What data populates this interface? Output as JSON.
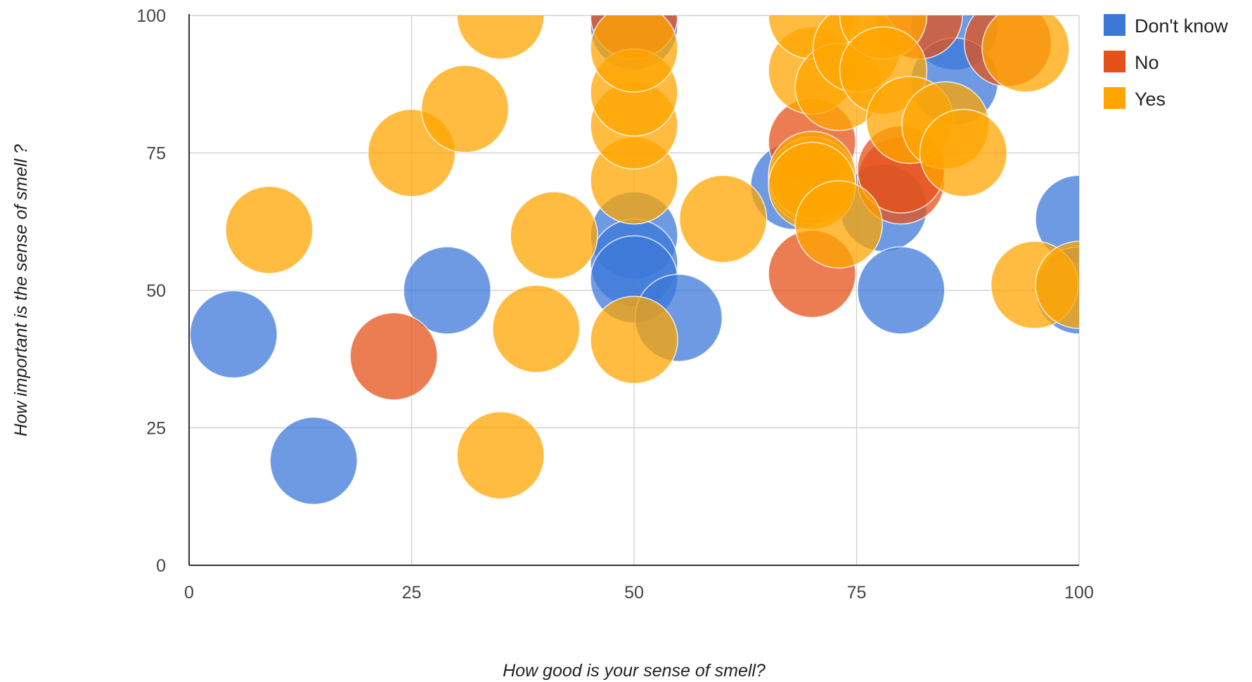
{
  "chart_data": {
    "type": "bubble",
    "xlabel": "How good is your sense of smell?",
    "ylabel": "How important is the sense of smell ?",
    "xlim": [
      0,
      100
    ],
    "ylim": [
      0,
      100
    ],
    "xticks": [
      "0",
      "25",
      "50",
      "75",
      "100"
    ],
    "yticks": [
      "0",
      "25",
      "50",
      "75",
      "100"
    ],
    "grid": true,
    "legend_position": "right",
    "series": [
      {
        "name": "Don't know",
        "color": "#3c78d8",
        "points": [
          {
            "x": 5,
            "y": 42
          },
          {
            "x": 14,
            "y": 19
          },
          {
            "x": 29,
            "y": 50
          },
          {
            "x": 50,
            "y": 60
          },
          {
            "x": 50,
            "y": 55
          },
          {
            "x": 50,
            "y": 52
          },
          {
            "x": 55,
            "y": 45
          },
          {
            "x": 50,
            "y": 98
          },
          {
            "x": 68,
            "y": 69
          },
          {
            "x": 78,
            "y": 65
          },
          {
            "x": 80,
            "y": 50
          },
          {
            "x": 86,
            "y": 98
          },
          {
            "x": 86,
            "y": 88
          },
          {
            "x": 100,
            "y": 63
          },
          {
            "x": 100,
            "y": 50
          }
        ]
      },
      {
        "name": "No",
        "color": "#e6511a",
        "points": [
          {
            "x": 23,
            "y": 38
          },
          {
            "x": 50,
            "y": 100
          },
          {
            "x": 70,
            "y": 53
          },
          {
            "x": 70,
            "y": 77
          },
          {
            "x": 80,
            "y": 70
          },
          {
            "x": 80,
            "y": 72
          },
          {
            "x": 82,
            "y": 100
          },
          {
            "x": 92,
            "y": 95
          }
        ]
      },
      {
        "name": "Yes",
        "color": "#ffa500",
        "points": [
          {
            "x": 9,
            "y": 61
          },
          {
            "x": 25,
            "y": 75
          },
          {
            "x": 31,
            "y": 83
          },
          {
            "x": 35,
            "y": 100
          },
          {
            "x": 35,
            "y": 20
          },
          {
            "x": 39,
            "y": 43
          },
          {
            "x": 41,
            "y": 60
          },
          {
            "x": 50,
            "y": 41
          },
          {
            "x": 50,
            "y": 70
          },
          {
            "x": 50,
            "y": 80
          },
          {
            "x": 50,
            "y": 86
          },
          {
            "x": 50,
            "y": 94
          },
          {
            "x": 60,
            "y": 63
          },
          {
            "x": 70,
            "y": 70
          },
          {
            "x": 70,
            "y": 71
          },
          {
            "x": 70,
            "y": 69
          },
          {
            "x": 70,
            "y": 90
          },
          {
            "x": 70,
            "y": 100
          },
          {
            "x": 73,
            "y": 62
          },
          {
            "x": 73,
            "y": 87
          },
          {
            "x": 75,
            "y": 94
          },
          {
            "x": 78,
            "y": 100
          },
          {
            "x": 78,
            "y": 90
          },
          {
            "x": 81,
            "y": 81
          },
          {
            "x": 85,
            "y": 80
          },
          {
            "x": 87,
            "y": 75
          },
          {
            "x": 94,
            "y": 94
          },
          {
            "x": 95,
            "y": 51
          },
          {
            "x": 100,
            "y": 51
          }
        ]
      }
    ]
  }
}
